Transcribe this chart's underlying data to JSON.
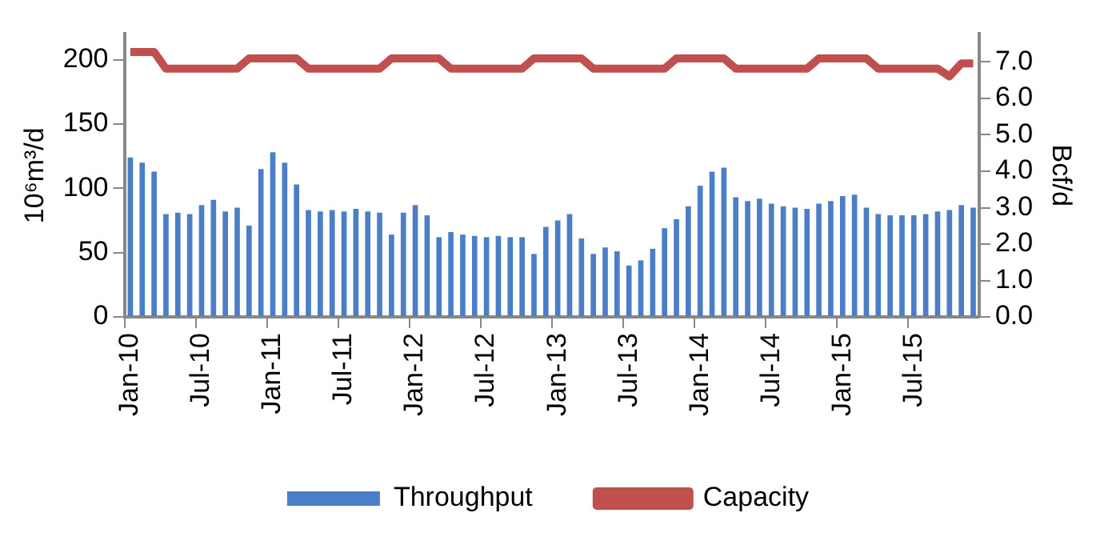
{
  "chart_data": {
    "type": "bar",
    "ylabel": "10⁶m³/d",
    "y2label": "Bcf/d",
    "categories": [
      "Jan-10",
      null,
      null,
      null,
      null,
      null,
      "Jul-10",
      null,
      null,
      null,
      null,
      null,
      "Jan-11",
      null,
      null,
      null,
      null,
      null,
      "Jul-11",
      null,
      null,
      null,
      null,
      null,
      "Jan-12",
      null,
      null,
      null,
      null,
      null,
      "Jul-12",
      null,
      null,
      null,
      null,
      null,
      "Jan-13",
      null,
      null,
      null,
      null,
      null,
      "Jul-13",
      null,
      null,
      null,
      null,
      null,
      "Jan-14",
      null,
      null,
      null,
      null,
      null,
      "Jul-14",
      null,
      null,
      null,
      null,
      null,
      "Jan-15",
      null,
      null,
      null,
      null,
      null,
      "Jul-15",
      null,
      null,
      null,
      null,
      null
    ],
    "series": [
      {
        "name": "Throughput",
        "color": "#4a7fc8",
        "values": [
          124,
          120,
          113,
          80,
          81,
          80,
          87,
          91,
          82,
          85,
          71,
          115,
          128,
          120,
          103,
          83,
          82,
          83,
          82,
          84,
          82,
          81,
          64,
          81,
          87,
          79,
          62,
          66,
          64,
          63,
          62,
          63,
          62,
          62,
          49,
          70,
          75,
          80,
          61,
          49,
          54,
          51,
          40,
          44,
          53,
          69,
          76,
          86,
          102,
          113,
          116,
          93,
          90,
          92,
          88,
          86,
          85,
          84,
          88,
          90,
          94,
          95,
          85,
          80,
          79,
          79,
          79,
          80,
          82,
          83,
          87,
          85
        ]
      },
      {
        "name": "Capacity",
        "type": "line",
        "color": "#c0504d",
        "values": [
          206,
          206,
          206,
          193,
          193,
          193,
          193,
          193,
          193,
          193,
          201,
          201,
          201,
          201,
          201,
          193,
          193,
          193,
          193,
          193,
          193,
          193,
          201,
          201,
          201,
          201,
          201,
          193,
          193,
          193,
          193,
          193,
          193,
          193,
          201,
          201,
          201,
          201,
          201,
          193,
          193,
          193,
          193,
          193,
          193,
          193,
          201,
          201,
          201,
          201,
          201,
          193,
          193,
          193,
          193,
          193,
          193,
          193,
          201,
          201,
          201,
          201,
          201,
          193,
          193,
          193,
          193,
          193,
          193,
          187,
          197,
          197
        ]
      }
    ],
    "ylim": [
      0,
      220
    ],
    "yticks": [
      0,
      50,
      100,
      150,
      200
    ],
    "y2lim": [
      0,
      7.77
    ],
    "y2ticks": [
      {
        "value": 0,
        "label": "0.0"
      },
      {
        "value": 1,
        "label": "1.0"
      },
      {
        "value": 2,
        "label": "2.0"
      },
      {
        "value": 3,
        "label": "3.0"
      },
      {
        "value": 4,
        "label": "4.0"
      },
      {
        "value": 5,
        "label": "5.0"
      },
      {
        "value": 6,
        "label": "6.0"
      },
      {
        "value": 7,
        "label": "7.0"
      }
    ],
    "marker": "none",
    "legend": "bottom"
  }
}
